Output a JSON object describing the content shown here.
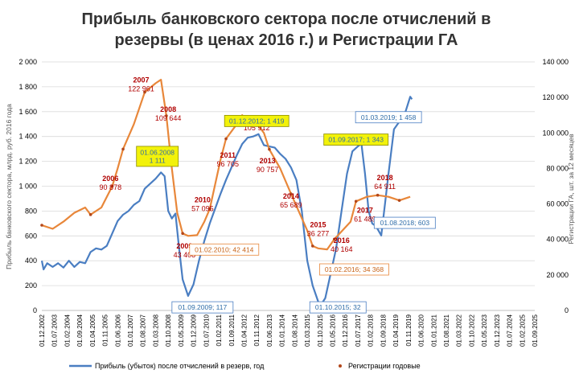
{
  "chart_data": {
    "type": "line",
    "title_line1": "Прибыль банковского сектора после отчислений в",
    "title_line2": "резервы (в ценах 2016 г.) и Регистрации ГА",
    "ylabel_left": "Прибыль банковского сектора, млрд. руб. 2016 года",
    "ylabel_right": "Регистрации ГА, шт. за 12 месяцев",
    "yticks_left": [
      "0",
      "200",
      "400",
      "600",
      "800",
      "1 000",
      "1 200",
      "1 400",
      "1 600",
      "1 800",
      "2 000"
    ],
    "yticks_right": [
      "0",
      "20 000",
      "40 000",
      "60 000",
      "80 000",
      "100 000",
      "120 000",
      "140 000"
    ],
    "ylim_left": [
      0,
      2000
    ],
    "ylim_right": [
      0,
      140000
    ],
    "x_range": [
      "2002-12",
      "2025-09"
    ],
    "xticks": [
      "01.12.2002",
      "01.07.2003",
      "01.02.2004",
      "01.09.2004",
      "01.04.2005",
      "01.11.2005",
      "01.06.2006",
      "01.01.2007",
      "01.08.2007",
      "01.03.2008",
      "01.10.2008",
      "01.05.2009",
      "01.12.2009",
      "01.07.2010",
      "01.02.2011",
      "01.09.2011",
      "01.04.2012",
      "01.11.2012",
      "01.06.2013",
      "01.01.2014",
      "01.08.2014",
      "01.03.2015",
      "01.10.2015",
      "01.05.2016",
      "01.12.2016",
      "01.07.2017",
      "01.02.2018",
      "01.09.2018",
      "01.04.2019",
      "01.11.2019",
      "01.06.2020",
      "01.01.2021",
      "01.08.2021",
      "01.03.2022",
      "01.10.2022",
      "01.05.2023",
      "01.12.2023",
      "01.07.2024",
      "01.02.2025",
      "01.09.2025"
    ],
    "series": [
      {
        "name": "Прибыль (убыток) после отчислений в резерв, год",
        "axis": "left",
        "color": "#4a7ec2",
        "points": [
          [
            "2002-12",
            400
          ],
          [
            "2003-01",
            330
          ],
          [
            "2003-03",
            380
          ],
          [
            "2003-06",
            350
          ],
          [
            "2003-09",
            380
          ],
          [
            "2003-12",
            345
          ],
          [
            "2004-03",
            400
          ],
          [
            "2004-06",
            350
          ],
          [
            "2004-09",
            390
          ],
          [
            "2004-12",
            380
          ],
          [
            "2005-03",
            470
          ],
          [
            "2005-06",
            500
          ],
          [
            "2005-09",
            490
          ],
          [
            "2005-12",
            520
          ],
          [
            "2006-03",
            620
          ],
          [
            "2006-06",
            720
          ],
          [
            "2006-09",
            770
          ],
          [
            "2006-12",
            800
          ],
          [
            "2007-03",
            850
          ],
          [
            "2007-06",
            880
          ],
          [
            "2007-09",
            980
          ],
          [
            "2007-12",
            1020
          ],
          [
            "2008-03",
            1060
          ],
          [
            "2008-06",
            1111
          ],
          [
            "2008-08",
            1080
          ],
          [
            "2008-10",
            800
          ],
          [
            "2008-12",
            740
          ],
          [
            "2009-02",
            780
          ],
          [
            "2009-04",
            500
          ],
          [
            "2009-06",
            250
          ],
          [
            "2009-09",
            117
          ],
          [
            "2009-12",
            210
          ],
          [
            "2010-03",
            400
          ],
          [
            "2010-06",
            560
          ],
          [
            "2010-09",
            700
          ],
          [
            "2010-12",
            820
          ],
          [
            "2011-03",
            940
          ],
          [
            "2011-06",
            1050
          ],
          [
            "2011-09",
            1150
          ],
          [
            "2011-12",
            1250
          ],
          [
            "2012-03",
            1340
          ],
          [
            "2012-06",
            1390
          ],
          [
            "2012-09",
            1400
          ],
          [
            "2012-12",
            1419
          ],
          [
            "2013-03",
            1330
          ],
          [
            "2013-06",
            1320
          ],
          [
            "2013-09",
            1310
          ],
          [
            "2013-12",
            1260
          ],
          [
            "2014-03",
            1220
          ],
          [
            "2014-06",
            1150
          ],
          [
            "2014-09",
            1050
          ],
          [
            "2014-12",
            800
          ],
          [
            "2015-03",
            400
          ],
          [
            "2015-06",
            200
          ],
          [
            "2015-10",
            32
          ],
          [
            "2016-01",
            100
          ],
          [
            "2016-04",
            300
          ],
          [
            "2016-07",
            500
          ],
          [
            "2016-10",
            800
          ],
          [
            "2017-01",
            1100
          ],
          [
            "2017-04",
            1280
          ],
          [
            "2017-07",
            1320
          ],
          [
            "2017-09",
            1343
          ],
          [
            "2017-11",
            1100
          ],
          [
            "2018-01",
            800
          ],
          [
            "2018-03",
            700
          ],
          [
            "2018-05",
            680
          ],
          [
            "2018-08",
            603
          ],
          [
            "2018-10",
            850
          ],
          [
            "2018-12",
            1100
          ],
          [
            "2019-03",
            1458
          ],
          [
            "2019-06",
            1520
          ],
          [
            "2019-09",
            1580
          ],
          [
            "2019-12",
            1720
          ],
          [
            "2020-01",
            1700
          ]
        ]
      },
      {
        "name": "Регистрации годовые",
        "axis": "right",
        "color": "#e8873a",
        "points": [
          [
            "2002-12",
            48000
          ],
          [
            "2003-06",
            46000
          ],
          [
            "2003-12",
            50000
          ],
          [
            "2004-06",
            55000
          ],
          [
            "2004-12",
            58000
          ],
          [
            "2005-03",
            54000
          ],
          [
            "2005-09",
            58000
          ],
          [
            "2006-03",
            70000
          ],
          [
            "2006-06",
            80000
          ],
          [
            "2006-09",
            90878
          ],
          [
            "2007-03",
            105000
          ],
          [
            "2007-09",
            122961
          ],
          [
            "2008-03",
            128000
          ],
          [
            "2008-06",
            130000
          ],
          [
            "2008-09",
            109644
          ],
          [
            "2008-12",
            80000
          ],
          [
            "2009-03",
            55000
          ],
          [
            "2009-06",
            43408
          ],
          [
            "2009-09",
            42000
          ],
          [
            "2010-02",
            42414
          ],
          [
            "2010-06",
            50000
          ],
          [
            "2010-09",
            57095
          ],
          [
            "2011-03",
            85000
          ],
          [
            "2011-06",
            96705
          ],
          [
            "2011-12",
            105000
          ],
          [
            "2012-03",
            110000
          ],
          [
            "2012-06",
            105912
          ],
          [
            "2012-09",
            108000
          ],
          [
            "2013-03",
            100000
          ],
          [
            "2013-06",
            90757
          ],
          [
            "2013-12",
            80000
          ],
          [
            "2014-06",
            65689
          ],
          [
            "2015-03",
            45000
          ],
          [
            "2015-06",
            36277
          ],
          [
            "2015-09",
            35000
          ],
          [
            "2016-02",
            34368
          ],
          [
            "2016-06",
            40164
          ],
          [
            "2017-03",
            50000
          ],
          [
            "2017-06",
            61489
          ],
          [
            "2017-12",
            64000
          ],
          [
            "2018-06",
            64911
          ],
          [
            "2018-12",
            64000
          ],
          [
            "2019-06",
            62000
          ],
          [
            "2019-12",
            64000
          ]
        ]
      }
    ],
    "markers": [
      [
        "2002-12",
        48000
      ],
      [
        "2005-03",
        54000
      ],
      [
        "2006-03",
        70000
      ],
      [
        "2006-09",
        90878
      ],
      [
        "2007-09",
        122961
      ],
      [
        "2008-09",
        109644
      ],
      [
        "2009-06",
        43408
      ],
      [
        "2010-09",
        57095
      ],
      [
        "2011-06",
        96705
      ],
      [
        "2012-06",
        105912
      ],
      [
        "2013-06",
        90757
      ],
      [
        "2014-06",
        65689
      ],
      [
        "2015-06",
        36277
      ],
      [
        "2016-06",
        40164
      ],
      [
        "2017-06",
        61489
      ],
      [
        "2018-06",
        64911
      ],
      [
        "2019-06",
        62000
      ]
    ],
    "year_labels": [
      {
        "year": "2006",
        "value": "90 878",
        "date": "2006-02",
        "gy": 73000
      },
      {
        "year": "2007",
        "value": "122 961",
        "date": "2007-07",
        "gy": 128500
      },
      {
        "year": "2008",
        "value": "109 644",
        "date": "2008-10",
        "gy": 112000
      },
      {
        "year": "2009",
        "value": "43 408",
        "date": "2009-07",
        "gy": 35000
      },
      {
        "year": "2010",
        "value": "57 095",
        "date": "2010-05",
        "gy": 61000
      },
      {
        "year": "2011",
        "value": "96 705",
        "date": "2011-07",
        "gy": 86000
      },
      {
        "year": "2012",
        "value": "105 912",
        "date": "2012-11",
        "gy": 106500
      },
      {
        "year": "2013",
        "value": "90 757",
        "date": "2013-05",
        "gy": 83000
      },
      {
        "year": "2014",
        "value": "65 689",
        "date": "2014-06",
        "gy": 63000
      },
      {
        "year": "2015",
        "value": "36 277",
        "date": "2015-09",
        "gy": 47000
      },
      {
        "year": "2016",
        "value": "40 164",
        "date": "2016-10",
        "gy": 38000
      },
      {
        "year": "2017",
        "value": "61 489",
        "date": "2017-11",
        "gy": 55000
      },
      {
        "year": "2018",
        "value": "64 911",
        "date": "2018-10",
        "gy": 73500
      }
    ],
    "callouts": [
      {
        "text": "01.06.2008\n1 111",
        "date": "2008-04",
        "y": 1240,
        "style": "yellow",
        "w": 52,
        "h": 25
      },
      {
        "text": "01.12.2012; 1 419",
        "date": "2012-11",
        "y": 1525,
        "style": "yellow",
        "w": 80,
        "h": 14
      },
      {
        "text": "01.09.2017; 1 343",
        "date": "2017-06",
        "y": 1375,
        "style": "yellow",
        "w": 80,
        "h": 14
      },
      {
        "text": "01.03.2019; 1 458",
        "date": "2018-12",
        "y": 1555,
        "style": "blue",
        "w": 82,
        "h": 14
      },
      {
        "text": "01.08.2018; 603",
        "date": "2019-09",
        "y": 705,
        "style": "blue",
        "w": 76,
        "h": 14
      },
      {
        "text": "01.09.2009; 117",
        "date": "2010-05",
        "y": 25,
        "style": "blue",
        "w": 76,
        "h": 14
      },
      {
        "text": "01.10.2015; 32",
        "date": "2016-08",
        "y": 25,
        "style": "blue",
        "w": 70,
        "h": 14
      },
      {
        "text": "01.02.2010; 42 414",
        "date": "2011-05",
        "y": 490,
        "style": "orange",
        "w": 86,
        "h": 14
      },
      {
        "text": "01.02.2016; 34 368",
        "date": "2017-05",
        "y": 330,
        "style": "orange",
        "w": 86,
        "h": 14
      }
    ],
    "legend": {
      "placement": "bottom",
      "blue_label": "Прибыль (убыток) после отчислений в резерв, год",
      "orange_label": "Регистрации годовые"
    },
    "colors": {
      "profit": "#4a7ec2",
      "reg": "#e8873a",
      "marker": "#b3471a",
      "label": "#b00000",
      "yellow_fill": "#f2f20a",
      "yellow_border": "#8c8c00",
      "blue_border": "#4a7ec2",
      "blue_text": "#2e6ca8",
      "orange_border": "#e8873a",
      "orange_text": "#c86418",
      "grid": "#d9d9d9"
    }
  }
}
